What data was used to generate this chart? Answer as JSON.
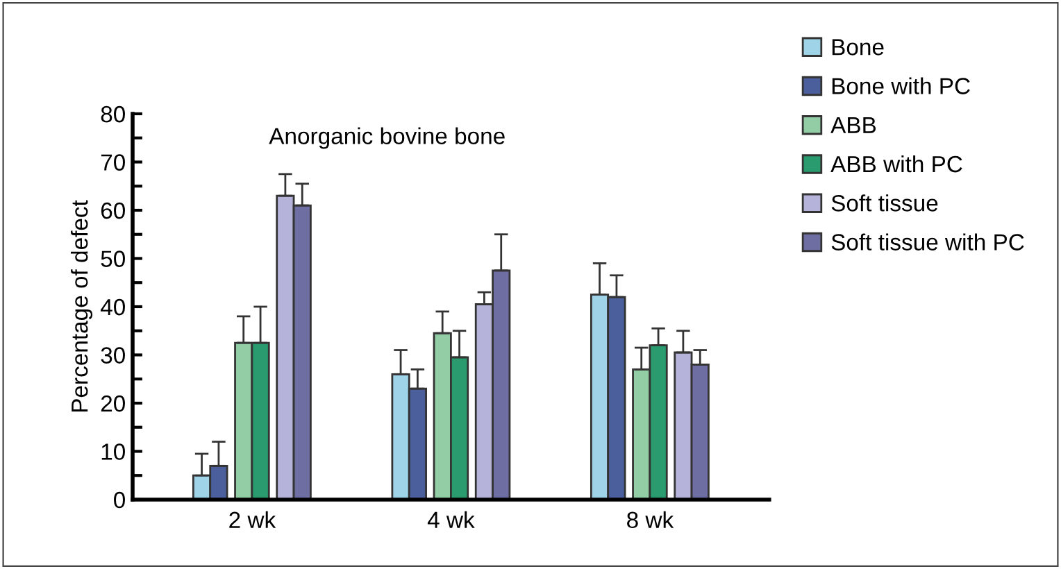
{
  "chart_data": {
    "type": "bar",
    "title": "Anorganic bovine bone",
    "ylabel": "Percentage of defect",
    "categories": [
      "2 wk",
      "4 wk",
      "8 wk"
    ],
    "series": [
      {
        "name": "Bone",
        "color": "#9fd3e8",
        "values": [
          5,
          26,
          42.5
        ],
        "errors": [
          [
            5,
            9.5
          ],
          [
            26,
            31
          ],
          [
            42.5,
            49
          ]
        ]
      },
      {
        "name": "Bone with PC",
        "color": "#4a5f9b",
        "values": [
          7,
          23,
          42
        ],
        "errors": [
          [
            7,
            12
          ],
          [
            23,
            27
          ],
          [
            42,
            46.5
          ]
        ]
      },
      {
        "name": "ABB",
        "color": "#92cda5",
        "values": [
          32.5,
          34.5,
          27
        ],
        "errors": [
          [
            32.5,
            38
          ],
          [
            34.5,
            39
          ],
          [
            27,
            31.5
          ]
        ]
      },
      {
        "name": "ABB with PC",
        "color": "#2a9b6e",
        "values": [
          32.5,
          29.5,
          32
        ],
        "errors": [
          [
            32.5,
            40
          ],
          [
            29.5,
            35
          ],
          [
            32,
            35.5
          ]
        ]
      },
      {
        "name": "Soft tissue",
        "color": "#b5b3d9",
        "values": [
          63,
          40.5,
          30.5
        ],
        "errors": [
          [
            63,
            67.5
          ],
          [
            40.5,
            43
          ],
          [
            30.5,
            35
          ]
        ]
      },
      {
        "name": "Soft tissue with PC",
        "color": "#6f6ea3",
        "values": [
          61,
          47.5,
          28
        ],
        "errors": [
          [
            61,
            65.5
          ],
          [
            47.5,
            55
          ],
          [
            28,
            31
          ]
        ]
      }
    ],
    "ylim": [
      0,
      80
    ],
    "yticks": [
      0,
      {
        "value": 5,
        "label": null
      },
      10,
      {
        "value": 15,
        "label": null
      },
      20,
      {
        "value": 25,
        "label": null
      },
      30,
      {
        "value": 35,
        "label": null
      },
      40,
      {
        "value": 45,
        "label": null
      },
      50,
      {
        "value": 55,
        "label": null
      },
      60,
      {
        "value": 65,
        "label": null
      },
      70,
      {
        "value": 75,
        "label": null
      },
      80
    ],
    "grid": false,
    "legend": "right"
  }
}
